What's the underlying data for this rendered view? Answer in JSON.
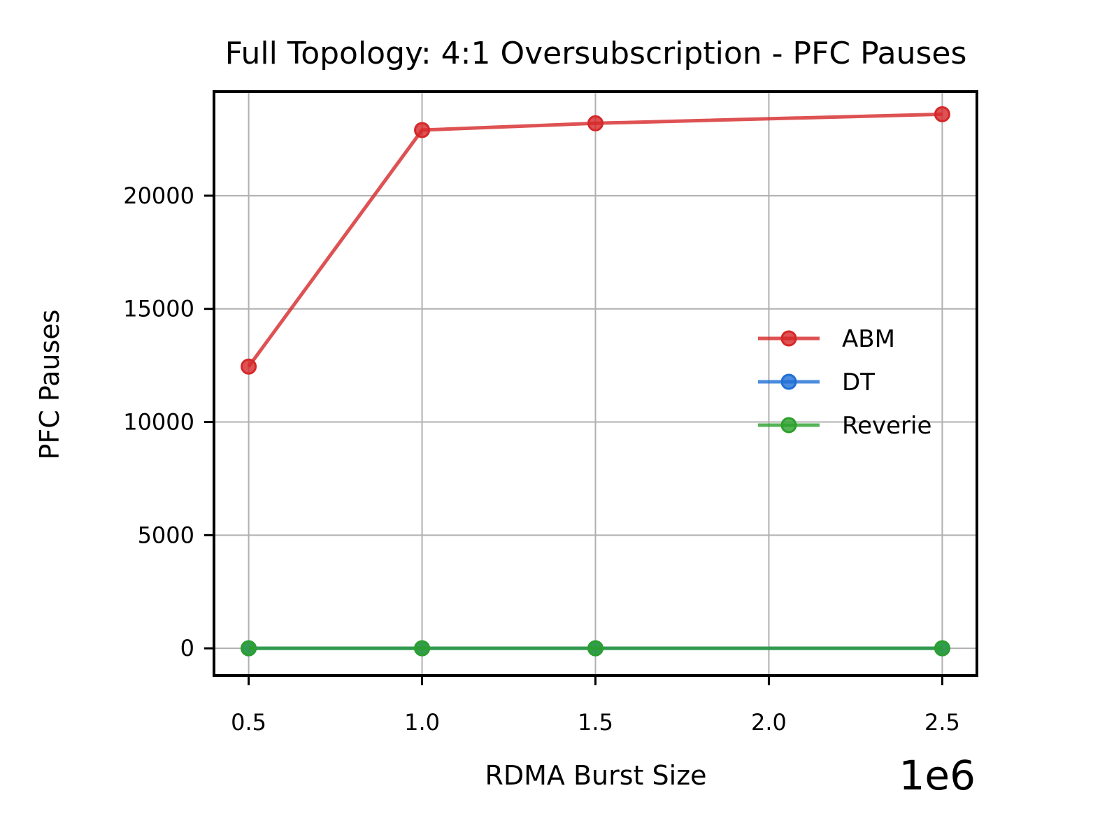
{
  "chart_data": {
    "type": "line",
    "title": "Full Topology: 4:1 Oversubscription - PFC Pauses",
    "xlabel": "RDMA Burst Size",
    "ylabel": "PFC Pauses",
    "x_offset_label": "1e6",
    "x": [
      0.5,
      1.0,
      1.5,
      2.5
    ],
    "xlim": [
      0.4,
      2.6
    ],
    "ylim": [
      -1200,
      24600
    ],
    "xticks": [
      0.5,
      1.0,
      1.5,
      2.0,
      2.5
    ],
    "xtick_labels": [
      "0.5",
      "1.0",
      "1.5",
      "2.0",
      "2.5"
    ],
    "yticks": [
      0,
      5000,
      10000,
      15000,
      20000
    ],
    "ytick_labels": [
      "0",
      "5000",
      "10000",
      "15000",
      "20000"
    ],
    "grid": true,
    "legend_position": "center-right",
    "series": [
      {
        "name": "ABM",
        "color": "#d62728",
        "values": [
          12450,
          22900,
          23200,
          23600
        ]
      },
      {
        "name": "DT",
        "color": "#1f6fd6",
        "values": [
          0,
          0,
          0,
          0
        ]
      },
      {
        "name": "Reverie",
        "color": "#2ca02c",
        "values": [
          0,
          0,
          0,
          0
        ]
      }
    ]
  }
}
